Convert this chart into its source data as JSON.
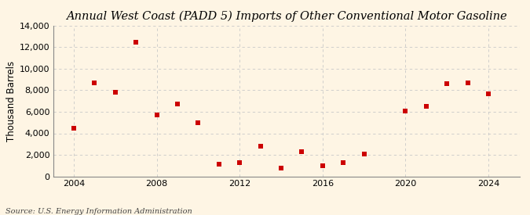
{
  "title": "Annual West Coast (PADD 5) Imports of Other Conventional Motor Gasoline",
  "ylabel": "Thousand Barrels",
  "source": "Source: U.S. Energy Information Administration",
  "background_color": "#FEF5E4",
  "plot_background_color": "#FEF5E4",
  "marker_color": "#CC0000",
  "marker": "s",
  "marker_size": 4,
  "x": [
    2004,
    2005,
    2006,
    2007,
    2008,
    2009,
    2010,
    2011,
    2012,
    2013,
    2014,
    2015,
    2016,
    2017,
    2018,
    2020,
    2021,
    2022,
    2023,
    2024
  ],
  "y": [
    4500,
    8700,
    7800,
    12500,
    5700,
    6700,
    5000,
    1100,
    1300,
    2800,
    800,
    2300,
    1000,
    1300,
    2100,
    6100,
    6500,
    8600,
    8700,
    7700
  ],
  "xlim": [
    2003.0,
    2025.5
  ],
  "ylim": [
    0,
    14000
  ],
  "yticks": [
    0,
    2000,
    4000,
    6000,
    8000,
    10000,
    12000,
    14000
  ],
  "xticks": [
    2004,
    2008,
    2012,
    2016,
    2020,
    2024
  ],
  "grid_color": "#C8C8C8",
  "title_fontsize": 10.5,
  "label_fontsize": 8.5,
  "tick_fontsize": 8,
  "source_fontsize": 7
}
